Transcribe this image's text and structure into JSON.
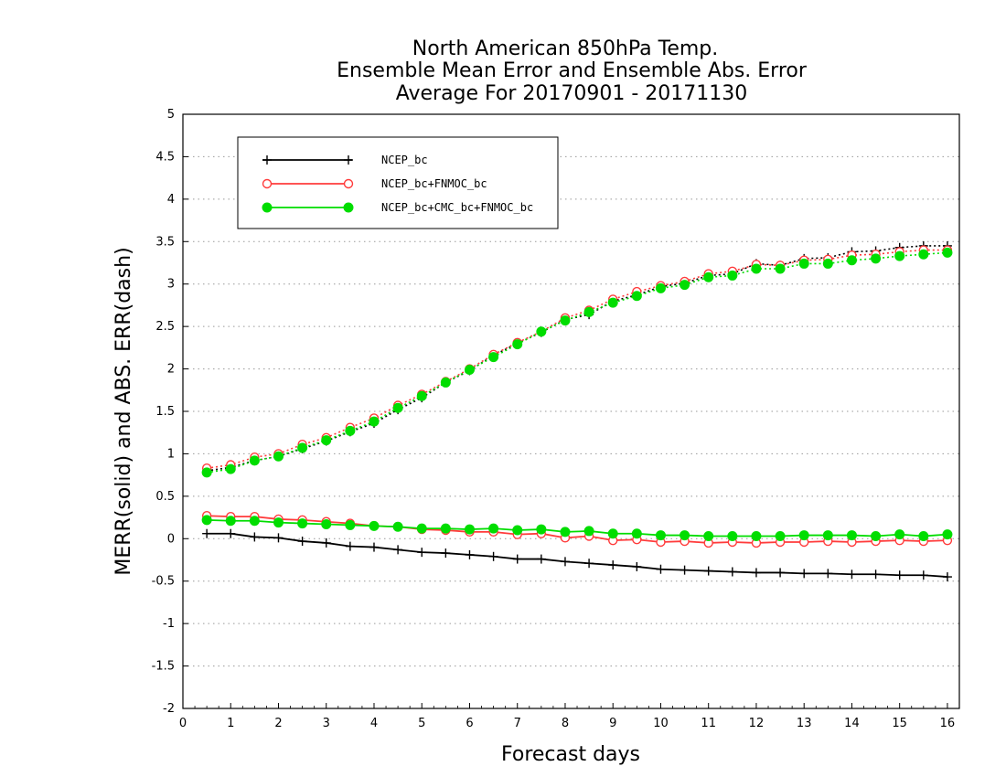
{
  "chart_data": {
    "type": "line",
    "title": [
      "North American 850hPa Temp.",
      "Ensemble Mean Error and Ensemble Abs. Error",
      "Average For 20170901 - 20171130"
    ],
    "xlabel": "Forecast days",
    "ylabel": "MERR(solid) and ABS. ERR(dash)",
    "xlim": [
      0,
      16.25
    ],
    "ylim": [
      -2,
      5
    ],
    "xticks": [
      "0",
      "1",
      "2",
      "3",
      "4",
      "5",
      "6",
      "7",
      "8",
      "9",
      "10",
      "11",
      "12",
      "13",
      "14",
      "15",
      "16"
    ],
    "yticks": [
      "-2",
      "-1.5",
      "-1",
      "-0.5",
      "0",
      "0.5",
      "1",
      "1.5",
      "2",
      "2.5",
      "3",
      "3.5",
      "4",
      "4.5",
      "5"
    ],
    "grid": true,
    "legend_position": "top-left",
    "x": [
      0.5,
      1,
      1.5,
      2,
      2.5,
      3,
      3.5,
      4,
      4.5,
      5,
      5.5,
      6,
      6.5,
      7,
      7.5,
      8,
      8.5,
      9,
      9.5,
      10,
      10.5,
      11,
      11.5,
      12,
      12.5,
      13,
      13.5,
      14,
      14.5,
      15,
      15.5,
      16
    ],
    "series": [
      {
        "name": "NCEP_bc",
        "color": "#000000",
        "marker": "plus",
        "merr": [
          0.06,
          0.06,
          0.02,
          0.01,
          -0.03,
          -0.05,
          -0.09,
          -0.1,
          -0.13,
          -0.16,
          -0.17,
          -0.19,
          -0.21,
          -0.24,
          -0.24,
          -0.27,
          -0.29,
          -0.31,
          -0.33,
          -0.36,
          -0.37,
          -0.38,
          -0.39,
          -0.4,
          -0.4,
          -0.41,
          -0.41,
          -0.42,
          -0.42,
          -0.43,
          -0.43,
          -0.45
        ],
        "abs_err": [
          0.8,
          0.84,
          0.92,
          0.97,
          1.06,
          1.15,
          1.26,
          1.36,
          1.52,
          1.66,
          1.84,
          1.98,
          2.16,
          2.3,
          2.43,
          2.58,
          2.64,
          2.8,
          2.87,
          2.97,
          3.01,
          3.1,
          3.12,
          3.24,
          3.22,
          3.3,
          3.31,
          3.38,
          3.39,
          3.43,
          3.45,
          3.45
        ]
      },
      {
        "name": "NCEP_bc+FNMOC_bc",
        "color": "#ff3b3b",
        "marker": "open-circle",
        "merr": [
          0.27,
          0.26,
          0.26,
          0.23,
          0.22,
          0.2,
          0.18,
          0.15,
          0.14,
          0.11,
          0.1,
          0.08,
          0.08,
          0.05,
          0.06,
          0.01,
          0.03,
          -0.02,
          -0.01,
          -0.04,
          -0.03,
          -0.05,
          -0.04,
          -0.05,
          -0.04,
          -0.04,
          -0.03,
          -0.04,
          -0.03,
          -0.02,
          -0.03,
          -0.02
        ],
        "abs_err": [
          0.83,
          0.87,
          0.96,
          1.0,
          1.11,
          1.19,
          1.31,
          1.42,
          1.57,
          1.7,
          1.85,
          2.0,
          2.17,
          2.31,
          2.44,
          2.6,
          2.69,
          2.82,
          2.91,
          2.98,
          3.03,
          3.12,
          3.15,
          3.23,
          3.22,
          3.28,
          3.29,
          3.34,
          3.35,
          3.38,
          3.4,
          3.4
        ]
      },
      {
        "name": "NCEP_bc+CMC_bc+FNMOC_bc",
        "color": "#00dd00",
        "marker": "filled-circle",
        "merr": [
          0.22,
          0.21,
          0.21,
          0.19,
          0.18,
          0.17,
          0.16,
          0.15,
          0.14,
          0.12,
          0.12,
          0.11,
          0.12,
          0.1,
          0.11,
          0.08,
          0.09,
          0.06,
          0.06,
          0.04,
          0.04,
          0.03,
          0.03,
          0.03,
          0.03,
          0.04,
          0.04,
          0.04,
          0.03,
          0.05,
          0.03,
          0.05
        ],
        "abs_err": [
          0.78,
          0.82,
          0.92,
          0.97,
          1.07,
          1.16,
          1.27,
          1.38,
          1.54,
          1.68,
          1.84,
          1.99,
          2.14,
          2.29,
          2.44,
          2.57,
          2.67,
          2.78,
          2.86,
          2.95,
          2.99,
          3.08,
          3.1,
          3.18,
          3.18,
          3.24,
          3.24,
          3.28,
          3.3,
          3.33,
          3.35,
          3.37
        ]
      }
    ]
  }
}
